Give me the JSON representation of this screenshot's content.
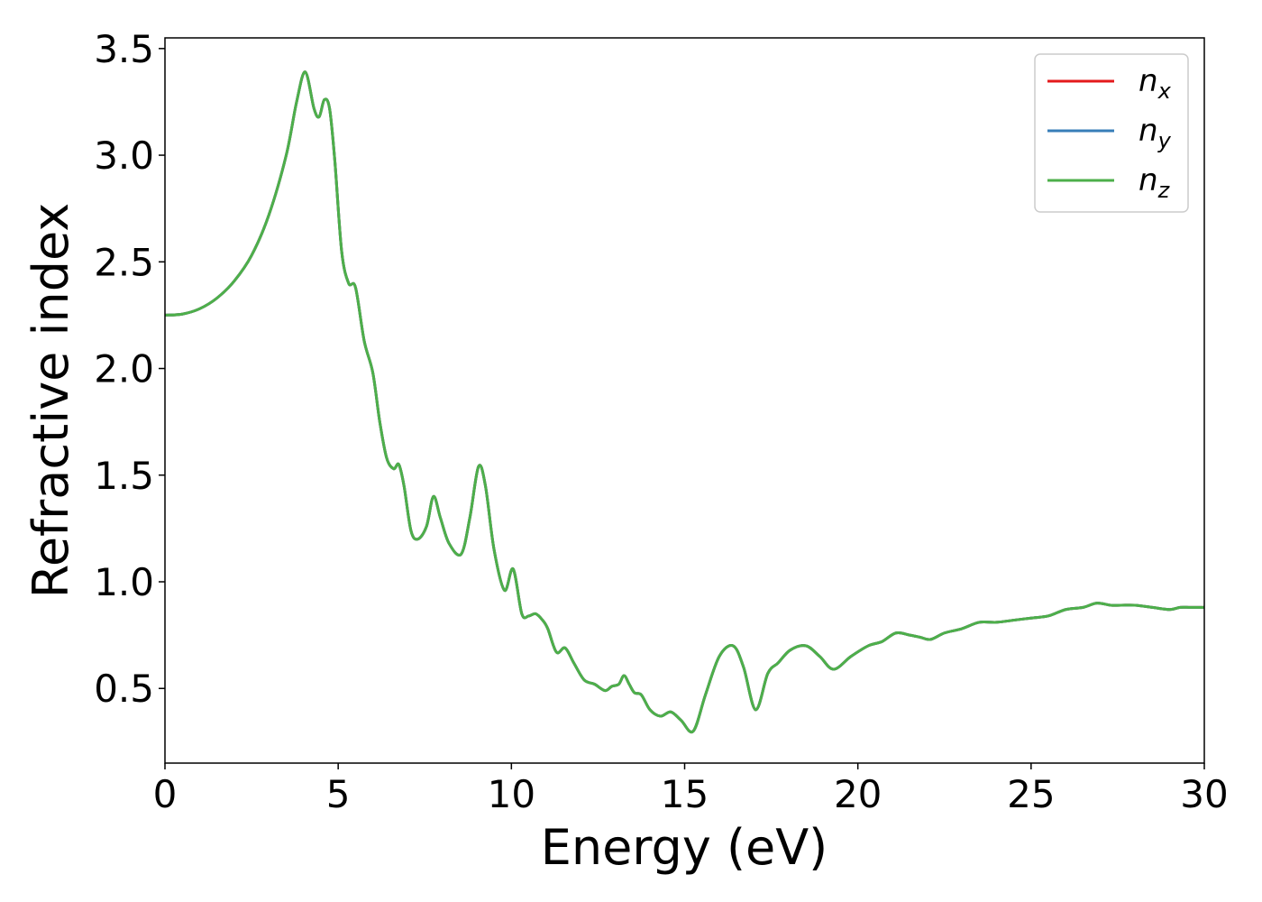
{
  "chart_data": {
    "type": "line",
    "title": "",
    "xlabel": "Energy (eV)",
    "ylabel": "Refractive index",
    "xlim": [
      0,
      30
    ],
    "ylim": [
      0.15,
      3.55
    ],
    "xticks": [
      0,
      5,
      10,
      15,
      20,
      25,
      30
    ],
    "xtick_labels": [
      "0",
      "5",
      "10",
      "15",
      "20",
      "25",
      "30"
    ],
    "yticks": [
      0.5,
      1.0,
      1.5,
      2.0,
      2.5,
      3.0,
      3.5
    ],
    "ytick_labels": [
      "0.5",
      "1.0",
      "1.5",
      "2.0",
      "2.5",
      "3.0",
      "3.5"
    ],
    "grid": false,
    "legend_position": "top-right",
    "x": [
      0,
      0.5,
      1.0,
      1.5,
      2.0,
      2.5,
      3.0,
      3.5,
      3.8,
      4.05,
      4.3,
      4.45,
      4.6,
      4.75,
      4.9,
      5.1,
      5.3,
      5.5,
      5.75,
      6.0,
      6.2,
      6.4,
      6.6,
      6.75,
      6.9,
      7.1,
      7.3,
      7.55,
      7.75,
      7.95,
      8.2,
      8.55,
      8.8,
      9.05,
      9.25,
      9.5,
      9.8,
      10.05,
      10.3,
      10.5,
      10.7,
      10.9,
      11.05,
      11.3,
      11.55,
      11.8,
      12.1,
      12.4,
      12.7,
      12.9,
      13.1,
      13.25,
      13.4,
      13.55,
      13.75,
      14.0,
      14.3,
      14.6,
      14.9,
      15.25,
      15.6,
      16.0,
      16.4,
      16.7,
      17.05,
      17.4,
      17.7,
      18.05,
      18.5,
      18.9,
      19.3,
      19.8,
      20.3,
      20.7,
      21.1,
      21.5,
      21.8,
      22.1,
      22.5,
      23.0,
      23.5,
      24.0,
      24.5,
      25.0,
      25.5,
      26.0,
      26.5,
      26.9,
      27.3,
      27.6,
      28.0,
      28.5,
      29.0,
      29.3,
      29.6,
      30.0
    ],
    "series": [
      {
        "name": "n_x",
        "label_main": "n",
        "label_sub": "x",
        "color": "#e41a1c",
        "y": [
          2.25,
          2.255,
          2.28,
          2.33,
          2.41,
          2.53,
          2.72,
          3.0,
          3.25,
          3.39,
          3.22,
          3.18,
          3.26,
          3.22,
          2.98,
          2.55,
          2.4,
          2.38,
          2.13,
          1.98,
          1.75,
          1.58,
          1.53,
          1.55,
          1.45,
          1.24,
          1.2,
          1.26,
          1.4,
          1.3,
          1.18,
          1.13,
          1.3,
          1.54,
          1.45,
          1.15,
          0.96,
          1.06,
          0.85,
          0.84,
          0.85,
          0.82,
          0.78,
          0.67,
          0.69,
          0.62,
          0.54,
          0.52,
          0.49,
          0.51,
          0.52,
          0.56,
          0.52,
          0.48,
          0.47,
          0.4,
          0.37,
          0.39,
          0.35,
          0.3,
          0.47,
          0.65,
          0.7,
          0.6,
          0.4,
          0.57,
          0.62,
          0.68,
          0.7,
          0.65,
          0.59,
          0.65,
          0.7,
          0.72,
          0.76,
          0.75,
          0.74,
          0.73,
          0.76,
          0.78,
          0.81,
          0.81,
          0.82,
          0.83,
          0.84,
          0.87,
          0.88,
          0.9,
          0.89,
          0.89,
          0.89,
          0.88,
          0.87,
          0.88,
          0.88,
          0.88
        ]
      },
      {
        "name": "n_y",
        "label_main": "n",
        "label_sub": "y",
        "color": "#377eb8",
        "y": [
          2.25,
          2.255,
          2.28,
          2.33,
          2.41,
          2.53,
          2.72,
          3.0,
          3.25,
          3.39,
          3.22,
          3.18,
          3.26,
          3.22,
          2.98,
          2.55,
          2.4,
          2.38,
          2.13,
          1.98,
          1.75,
          1.58,
          1.53,
          1.55,
          1.45,
          1.24,
          1.2,
          1.26,
          1.4,
          1.3,
          1.18,
          1.13,
          1.3,
          1.54,
          1.45,
          1.15,
          0.96,
          1.06,
          0.85,
          0.84,
          0.85,
          0.82,
          0.78,
          0.67,
          0.69,
          0.62,
          0.54,
          0.52,
          0.49,
          0.51,
          0.52,
          0.56,
          0.52,
          0.48,
          0.47,
          0.4,
          0.37,
          0.39,
          0.35,
          0.3,
          0.47,
          0.65,
          0.7,
          0.6,
          0.4,
          0.57,
          0.62,
          0.68,
          0.7,
          0.65,
          0.59,
          0.65,
          0.7,
          0.72,
          0.76,
          0.75,
          0.74,
          0.73,
          0.76,
          0.78,
          0.81,
          0.81,
          0.82,
          0.83,
          0.84,
          0.87,
          0.88,
          0.9,
          0.89,
          0.89,
          0.89,
          0.88,
          0.87,
          0.88,
          0.88,
          0.88
        ]
      },
      {
        "name": "n_z",
        "label_main": "n",
        "label_sub": "z",
        "color": "#4daf4a",
        "y": [
          2.25,
          2.255,
          2.28,
          2.33,
          2.41,
          2.53,
          2.72,
          3.0,
          3.25,
          3.39,
          3.22,
          3.18,
          3.26,
          3.22,
          2.98,
          2.55,
          2.4,
          2.38,
          2.13,
          1.98,
          1.75,
          1.58,
          1.53,
          1.55,
          1.45,
          1.24,
          1.2,
          1.26,
          1.4,
          1.3,
          1.18,
          1.13,
          1.3,
          1.54,
          1.45,
          1.15,
          0.96,
          1.06,
          0.85,
          0.84,
          0.85,
          0.82,
          0.78,
          0.67,
          0.69,
          0.62,
          0.54,
          0.52,
          0.49,
          0.51,
          0.52,
          0.56,
          0.52,
          0.48,
          0.47,
          0.4,
          0.37,
          0.39,
          0.35,
          0.3,
          0.47,
          0.65,
          0.7,
          0.6,
          0.4,
          0.57,
          0.62,
          0.68,
          0.7,
          0.65,
          0.59,
          0.65,
          0.7,
          0.72,
          0.76,
          0.75,
          0.74,
          0.73,
          0.76,
          0.78,
          0.81,
          0.81,
          0.82,
          0.83,
          0.84,
          0.87,
          0.88,
          0.9,
          0.89,
          0.89,
          0.89,
          0.88,
          0.87,
          0.88,
          0.88,
          0.88
        ]
      }
    ]
  }
}
